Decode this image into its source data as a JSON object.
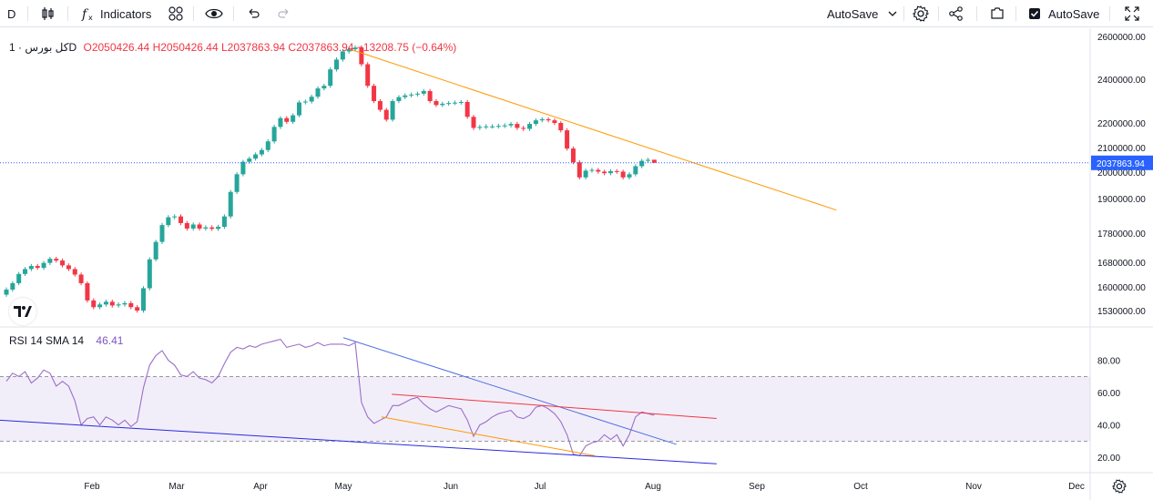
{
  "toolbar": {
    "symbol": "D",
    "indicators_label": "Indicators",
    "autosave_dropdown_label": "AutoSave",
    "autosave_checkbox_label": "AutoSave"
  },
  "legend": {
    "symbol": "کل بورس · 1D",
    "open": "O2050426.44",
    "high": "H2050426.44",
    "low": "L2037863.94",
    "close": "C2037863.94",
    "change": "−13208.75 (−0.64%)"
  },
  "rsi_legend": {
    "name": "RSI 14 SMA 14",
    "value": "46.41"
  },
  "colors": {
    "up": "#26a69a",
    "down": "#f23645",
    "rsi_line": "#9c6fc8",
    "rsi_band": "#7e57c2",
    "price_trend": "#ff9800",
    "rsi_blue": "#4f6fe0",
    "rsi_red": "#f23645",
    "rsi_orange": "#ff9800",
    "rsi_navy": "#2a2adf",
    "last_price_bg": "#2962ff"
  },
  "icons": [
    "candles-icon",
    "function-icon",
    "templates-icon",
    "eye-icon",
    "undo-icon",
    "redo-icon",
    "chevron-down-icon",
    "gear-icon",
    "share-icon",
    "camera-icon",
    "checkbox-icon",
    "fullscreen-icon",
    "tradingview-logo-icon"
  ],
  "chart_data": [
    {
      "type": "candlestick",
      "title": "کل بورس · 1D",
      "x_ticks": [
        "Feb",
        "Mar",
        "Apr",
        "May",
        "Jun",
        "Jul",
        "Aug",
        "Sep",
        "Oct",
        "Nov",
        "Dec"
      ],
      "y_ticks": [
        "2600000.00",
        "2400000.00",
        "2200000.00",
        "2100000.00",
        "2000000.00",
        "1900000.00",
        "1780000.00",
        "1680000.00",
        "1600000.00",
        "1530000.00"
      ],
      "last_price": "2037863.94",
      "ohlc_last": {
        "open": 2050426.44,
        "high": 2050426.44,
        "low": 2037863.94,
        "close": 2037863.94
      },
      "closes": [
        1592000,
        1612000,
        1642000,
        1658000,
        1668000,
        1662000,
        1678000,
        1692000,
        1686000,
        1670000,
        1658000,
        1640000,
        1612000,
        1560000,
        1540000,
        1548000,
        1556000,
        1545000,
        1548000,
        1552000,
        1540000,
        1530000,
        1596000,
        1690000,
        1750000,
        1808000,
        1835000,
        1838000,
        1815000,
        1796000,
        1810000,
        1796000,
        1800000,
        1795000,
        1802000,
        1838000,
        1925000,
        1992000,
        2042000,
        2055000,
        2072000,
        2090000,
        2125000,
        2184000,
        2222000,
        2205000,
        2235000,
        2294000,
        2298000,
        2320000,
        2358000,
        2370000,
        2446000,
        2492000,
        2530000,
        2540000,
        2548000,
        2470000,
        2370000,
        2300000,
        2260000,
        2215000,
        2300000,
        2318000,
        2326000,
        2330000,
        2334000,
        2346000,
        2300000,
        2282000,
        2288000,
        2291000,
        2293000,
        2296000,
        2228000,
        2180000,
        2184000,
        2186000,
        2186000,
        2188000,
        2190000,
        2196000,
        2180000,
        2176000,
        2196000,
        2212000,
        2217000,
        2212000,
        2200000,
        2170000,
        2096000,
        2040000,
        1980000,
        2006000,
        2009000,
        2002000,
        1996000,
        2004000,
        2002000,
        1980000,
        1992000,
        2024000,
        2046000,
        2050000,
        2038000
      ],
      "trend_line": {
        "from": {
          "date": "2023-05-03",
          "value": 2540000
        },
        "to": {
          "date": "2023-09-24",
          "value": 1860000
        }
      }
    },
    {
      "type": "line",
      "title": "RSI 14 SMA 14",
      "current_value": 46.41,
      "y_ticks": [
        "80.00",
        "60.00",
        "40.00",
        "20.00"
      ],
      "band": [
        30,
        70
      ],
      "series": [
        {
          "values": [
            67,
            72,
            70,
            73,
            66,
            69,
            74,
            72,
            64,
            67,
            64,
            55,
            40,
            44,
            45,
            40,
            45,
            43,
            40,
            43,
            39,
            42,
            63,
            77,
            83,
            86,
            80,
            77,
            71,
            70,
            73,
            69,
            68,
            66,
            70,
            78,
            85,
            88,
            87,
            89,
            88,
            90,
            91,
            92,
            93,
            88,
            89,
            90,
            88,
            89,
            91,
            89,
            90,
            90,
            90,
            89,
            91,
            54,
            45,
            41,
            43,
            45,
            52,
            52,
            54,
            56,
            57,
            53,
            50,
            48,
            50,
            52,
            51,
            50,
            43,
            33,
            40,
            42,
            45,
            47,
            48,
            49,
            45,
            44,
            46,
            51,
            52,
            50,
            47,
            42,
            34,
            22,
            21,
            27,
            29,
            30,
            34,
            31,
            34,
            27,
            34,
            45,
            48,
            47,
            46
          ]
        }
      ],
      "annotations": [
        {
          "color": "blue",
          "from": {
            "date": "2023-05-01",
            "value": 94
          },
          "to": {
            "date": "2023-08-08",
            "value": 28
          }
        },
        {
          "color": "red",
          "from": {
            "date": "2023-05-15",
            "value": 59
          },
          "to": {
            "date": "2023-08-20",
            "value": 44
          }
        },
        {
          "color": "orange",
          "from": {
            "date": "2023-05-12",
            "value": 45
          },
          "to": {
            "date": "2023-07-16",
            "value": 21
          }
        },
        {
          "color": "navy",
          "from": {
            "date": "2023-01-01",
            "value": 43
          },
          "to": {
            "date": "2023-08-20",
            "value": 16
          }
        }
      ]
    }
  ]
}
